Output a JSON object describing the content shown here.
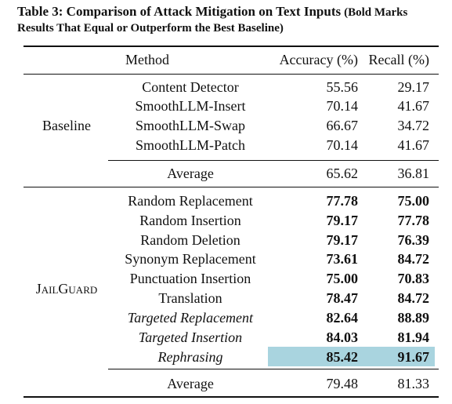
{
  "caption": {
    "lead": "Table 3: Comparison of Attack Mitigation on Text Inputs",
    "rest": "(Bold Marks Results That Equal or Outperform the Best Baseline)"
  },
  "headers": {
    "method": "Method",
    "accuracy": "Accuracy (%)",
    "recall": "Recall (%)"
  },
  "baseline": {
    "label": "Baseline",
    "rows": [
      {
        "method": "Content Detector",
        "accuracy": "55.56",
        "recall": "29.17"
      },
      {
        "method": "SmoothLLM-Insert",
        "accuracy": "70.14",
        "recall": "41.67"
      },
      {
        "method": "SmoothLLM-Swap",
        "accuracy": "66.67",
        "recall": "34.72"
      },
      {
        "method": "SmoothLLM-Patch",
        "accuracy": "70.14",
        "recall": "41.67"
      }
    ],
    "average": {
      "method": "Average",
      "accuracy": "65.62",
      "recall": "36.81"
    }
  },
  "jailguard": {
    "label_first": "J",
    "label_rest": "AIL",
    "label_second": "G",
    "label_end": "UARD",
    "rows": [
      {
        "method": "Random Replacement",
        "accuracy": "77.78",
        "recall": "75.00",
        "bold_acc": true,
        "bold_rec": true,
        "italic": false
      },
      {
        "method": "Random Insertion",
        "accuracy": "79.17",
        "recall": "77.78",
        "bold_acc": true,
        "bold_rec": true,
        "italic": false
      },
      {
        "method": "Random Deletion",
        "accuracy": "79.17",
        "recall": "76.39",
        "bold_acc": true,
        "bold_rec": true,
        "italic": false
      },
      {
        "method": "Synonym Replacement",
        "accuracy": "73.61",
        "recall": "84.72",
        "bold_acc": true,
        "bold_rec": true,
        "italic": false
      },
      {
        "method": "Punctuation Insertion",
        "accuracy": "75.00",
        "recall": "70.83",
        "bold_acc": true,
        "bold_rec": true,
        "italic": false
      },
      {
        "method": "Translation",
        "accuracy": "78.47",
        "recall": "84.72",
        "bold_acc": true,
        "bold_rec": true,
        "italic": false
      },
      {
        "method": "Targeted Replacement",
        "accuracy": "82.64",
        "recall": "88.89",
        "bold_acc": true,
        "bold_rec": true,
        "italic": true
      },
      {
        "method": "Targeted Insertion",
        "accuracy": "84.03",
        "recall": "81.94",
        "bold_acc": true,
        "bold_rec": true,
        "italic": true
      },
      {
        "method": "Rephrasing",
        "accuracy": "85.42",
        "recall": "91.67",
        "bold_acc": true,
        "bold_rec": true,
        "italic": true
      }
    ],
    "average": {
      "method": "Average",
      "accuracy": "79.48",
      "recall": "81.33"
    }
  },
  "colors": {
    "highlight": "#a9d4df"
  }
}
